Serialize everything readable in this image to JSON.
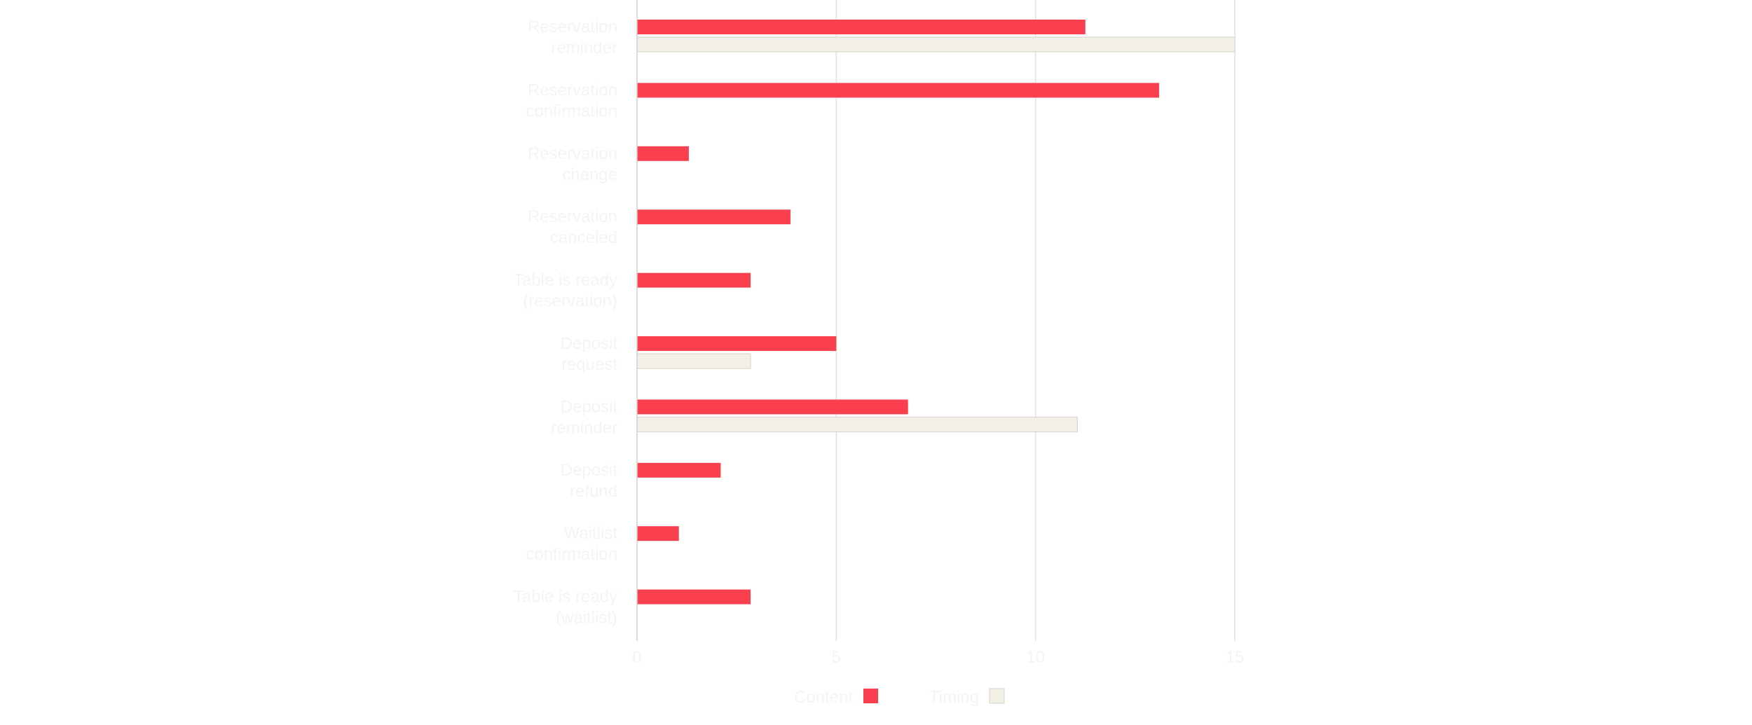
{
  "chart_data": {
    "type": "bar",
    "orientation": "horizontal",
    "title": "",
    "xlabel": "",
    "ylabel": "",
    "categories": [
      [
        "Reservation",
        "reminder"
      ],
      [
        "Reservation",
        "confirmation"
      ],
      [
        "Reservation",
        "change"
      ],
      [
        "Reservation",
        "canceled"
      ],
      [
        "Table is ready",
        "(reservation)"
      ],
      [
        "Deposit",
        "request"
      ],
      [
        "Deposit",
        "reminder"
      ],
      [
        "Deposit",
        "refund"
      ],
      [
        "Waitlist",
        "confirmation"
      ],
      [
        "Table is ready",
        "(waitlist)"
      ]
    ],
    "series": [
      {
        "name": "Content",
        "color": "#fa3f4f",
        "values": [
          11.25,
          13.1,
          1.3,
          3.85,
          2.85,
          5.0,
          6.8,
          2.1,
          1.05,
          2.85
        ]
      },
      {
        "name": "Timing",
        "color": "#f2f0e6",
        "values": [
          15.0,
          0,
          0,
          0,
          0,
          2.85,
          11.05,
          0,
          0,
          0
        ]
      }
    ],
    "xlim": [
      0,
      15
    ],
    "xticks": [
      0,
      5,
      10,
      15
    ],
    "grid": true,
    "legend": "bottom"
  }
}
